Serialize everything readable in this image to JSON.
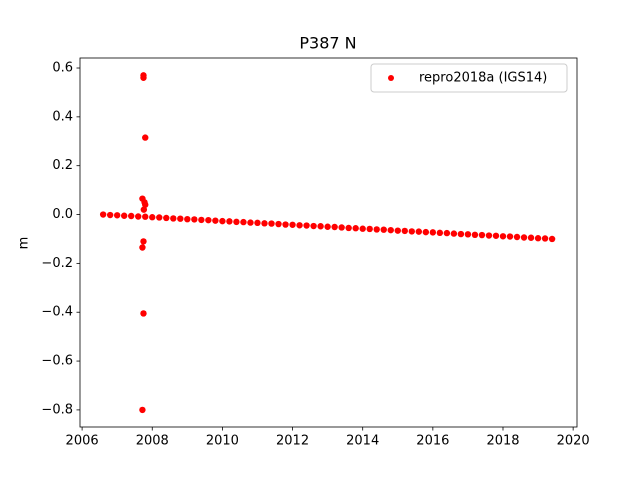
{
  "chart_data": {
    "type": "scatter",
    "title": "P387 N",
    "ylabel": "m",
    "legend": "upper right",
    "grid": false,
    "xlim": [
      2005.94,
      2020.11
    ],
    "ylim": [
      -0.87,
      0.641
    ],
    "xticks": [
      2006,
      2008,
      2010,
      2012,
      2014,
      2016,
      2018,
      2020
    ],
    "yticks": [
      {
        "value": 0.6,
        "label": "0.6"
      },
      {
        "value": 0.4,
        "label": "0.4"
      },
      {
        "value": 0.2,
        "label": "0.2"
      },
      {
        "value": 0.0,
        "label": "0.0"
      },
      {
        "value": -0.2,
        "label": "−0.2"
      },
      {
        "value": -0.4,
        "label": "−0.4"
      },
      {
        "value": -0.6,
        "label": "−0.6"
      },
      {
        "value": -0.8,
        "label": "−0.8"
      }
    ],
    "series": [
      {
        "name": "repro2018a (IGS14)",
        "color": "#ff0000",
        "x": [
          2006.6,
          2006.8,
          2007.0,
          2007.2,
          2007.4,
          2007.6,
          2007.8,
          2008.0,
          2008.2,
          2008.4,
          2008.6,
          2008.8,
          2009.0,
          2009.2,
          2009.4,
          2009.6,
          2009.8,
          2010.0,
          2010.2,
          2010.4,
          2010.6,
          2010.8,
          2011.0,
          2011.2,
          2011.4,
          2011.6,
          2011.8,
          2012.0,
          2012.2,
          2012.4,
          2012.6,
          2012.8,
          2013.0,
          2013.2,
          2013.4,
          2013.6,
          2013.8,
          2014.0,
          2014.2,
          2014.4,
          2014.6,
          2014.8,
          2015.0,
          2015.2,
          2015.4,
          2015.6,
          2015.8,
          2016.0,
          2016.2,
          2016.4,
          2016.6,
          2016.8,
          2017.0,
          2017.2,
          2017.4,
          2017.6,
          2017.8,
          2018.0,
          2018.2,
          2018.4,
          2018.6,
          2018.8,
          2019.0,
          2019.2,
          2019.4,
          2007.75,
          2007.75,
          2007.8,
          2007.72,
          2007.78,
          2007.8,
          2007.76,
          2007.75,
          2007.72,
          2007.75,
          2007.72
        ],
        "values": [
          0,
          -0.002,
          -0.003,
          -0.005,
          -0.006,
          -0.008,
          -0.009,
          -0.011,
          -0.012,
          -0.014,
          -0.016,
          -0.017,
          -0.019,
          -0.02,
          -0.022,
          -0.023,
          -0.025,
          -0.027,
          -0.028,
          -0.03,
          -0.031,
          -0.033,
          -0.034,
          -0.036,
          -0.037,
          -0.039,
          -0.041,
          -0.042,
          -0.044,
          -0.045,
          -0.047,
          -0.048,
          -0.05,
          -0.051,
          -0.053,
          -0.055,
          -0.056,
          -0.058,
          -0.059,
          -0.061,
          -0.062,
          -0.064,
          -0.066,
          -0.067,
          -0.069,
          -0.07,
          -0.072,
          -0.073,
          -0.075,
          -0.076,
          -0.078,
          -0.08,
          -0.081,
          -0.083,
          -0.084,
          -0.086,
          -0.087,
          -0.089,
          -0.09,
          -0.092,
          -0.094,
          -0.095,
          -0.097,
          -0.098,
          -0.1,
          0.57,
          0.56,
          0.315,
          0.065,
          0.05,
          0.04,
          0.02,
          -0.11,
          -0.135,
          -0.405,
          -0.8
        ]
      }
    ]
  }
}
